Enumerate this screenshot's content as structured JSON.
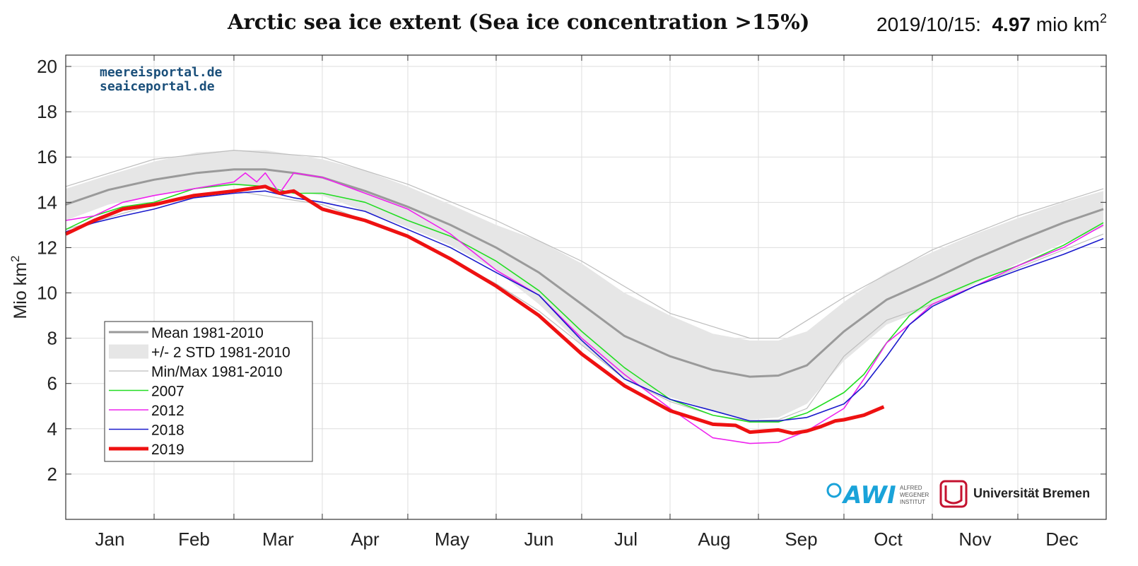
{
  "header": {
    "title": "Arctic sea ice extent (Sea ice concentration >15%)",
    "date_label": "2019/10/15:",
    "value": "4.97",
    "unit": "mio km",
    "unit_exp": "2"
  },
  "watermark": [
    "meereisportal.de",
    "seaiceportal.de"
  ],
  "logos": {
    "awi": "AWI",
    "awi_sub": [
      "ALFRED",
      "WEGENER",
      "INSTITUT"
    ],
    "bremen": "Universität Bremen"
  },
  "colors": {
    "mean": "#9a9a9a",
    "std_band": "#e6e6e6",
    "minmax": "#bdbdbd",
    "s2007": "#22dd22",
    "s2012": "#ee22ee",
    "s2018": "#1a1acc",
    "s2019": "#ee1111",
    "watermark": "#1a4f7a",
    "awi": "#1aa3d9",
    "bremen": "#c4122f"
  },
  "chart_data": {
    "type": "line",
    "ylabel": "Mio km",
    "ylabel_exp": "2",
    "ylim": [
      0,
      20.5
    ],
    "yticks": [
      2,
      4,
      6,
      8,
      10,
      12,
      14,
      16,
      18,
      20
    ],
    "xlim": [
      0,
      365
    ],
    "x_units": "day of year",
    "month_labels": [
      "Jan",
      "Feb",
      "Mar",
      "Apr",
      "May",
      "Jun",
      "Jul",
      "Aug",
      "Sep",
      "Oct",
      "Nov",
      "Dec"
    ],
    "month_starts": [
      0,
      31,
      59,
      90,
      120,
      151,
      181,
      212,
      243,
      273,
      304,
      334,
      365
    ],
    "grid": true,
    "legend_position": "lower-left",
    "legend": [
      "Mean 1981-2010",
      "+/- 2 STD 1981-2010",
      "Min/Max 1981-2010",
      "2007",
      "2012",
      "2018",
      "2019"
    ],
    "mean": {
      "x": [
        0,
        15,
        31,
        46,
        59,
        70,
        80,
        90,
        105,
        120,
        135,
        151,
        166,
        181,
        196,
        212,
        227,
        240,
        250,
        260,
        273,
        288,
        304,
        319,
        334,
        350,
        364
      ],
      "y": [
        13.9,
        14.55,
        15.0,
        15.3,
        15.45,
        15.45,
        15.3,
        15.1,
        14.5,
        13.8,
        13.0,
        12.0,
        10.9,
        9.5,
        8.1,
        7.2,
        6.6,
        6.3,
        6.35,
        6.8,
        8.3,
        9.7,
        10.6,
        11.5,
        12.3,
        13.1,
        13.7
      ]
    },
    "std_band": {
      "x": [
        0,
        15,
        31,
        46,
        59,
        70,
        80,
        90,
        105,
        120,
        135,
        151,
        166,
        181,
        196,
        212,
        227,
        240,
        250,
        260,
        273,
        288,
        304,
        319,
        334,
        350,
        364
      ],
      "upper": [
        14.6,
        15.2,
        15.8,
        16.2,
        16.3,
        16.3,
        16.1,
        15.9,
        15.4,
        14.7,
        13.9,
        13.0,
        12.3,
        11.3,
        10.0,
        9.0,
        8.2,
        7.9,
        7.9,
        8.3,
        9.6,
        10.9,
        11.8,
        12.6,
        13.3,
        14.0,
        14.5
      ],
      "lower": [
        13.2,
        13.9,
        14.3,
        14.6,
        14.75,
        14.7,
        14.5,
        14.3,
        13.6,
        12.9,
        12.1,
        11.0,
        9.5,
        7.7,
        6.2,
        5.4,
        4.8,
        4.4,
        4.5,
        5.1,
        7.0,
        8.6,
        9.4,
        10.4,
        11.3,
        12.2,
        12.9
      ]
    },
    "min": {
      "x": [
        0,
        31,
        59,
        90,
        120,
        151,
        166,
        181,
        196,
        212,
        227,
        240,
        250,
        260,
        273,
        288,
        304,
        334,
        364
      ],
      "y": [
        12.8,
        13.9,
        14.5,
        13.9,
        12.5,
        10.4,
        9.2,
        7.7,
        6.2,
        5.2,
        4.6,
        4.35,
        4.4,
        4.9,
        7.2,
        8.8,
        9.5,
        11.1,
        12.6
      ]
    },
    "max": {
      "x": [
        0,
        31,
        59,
        90,
        120,
        151,
        181,
        212,
        240,
        250,
        273,
        304,
        334,
        364
      ],
      "y": [
        14.7,
        15.9,
        16.3,
        16.0,
        14.8,
        13.2,
        11.4,
        9.1,
        8.0,
        8.0,
        9.8,
        11.9,
        13.4,
        14.6
      ]
    },
    "series": [
      {
        "name": "2007",
        "x": [
          0,
          10,
          20,
          31,
          45,
          59,
          70,
          80,
          90,
          105,
          120,
          135,
          151,
          166,
          181,
          196,
          212,
          227,
          240,
          250,
          260,
          273,
          280,
          288,
          296,
          304,
          319,
          334,
          350,
          364
        ],
        "y": [
          12.8,
          13.4,
          13.8,
          14.0,
          14.6,
          14.8,
          14.7,
          14.4,
          14.4,
          14.0,
          13.2,
          12.5,
          11.4,
          10.1,
          8.3,
          6.7,
          5.3,
          4.6,
          4.3,
          4.3,
          4.7,
          5.6,
          6.4,
          7.8,
          9.0,
          9.7,
          10.5,
          11.2,
          12.1,
          13.1
        ]
      },
      {
        "name": "2012",
        "x": [
          0,
          10,
          20,
          31,
          45,
          59,
          63,
          67,
          70,
          75,
          80,
          90,
          105,
          120,
          135,
          151,
          166,
          181,
          196,
          212,
          227,
          240,
          250,
          260,
          273,
          280,
          288,
          296,
          304,
          319,
          334,
          350,
          364
        ],
        "y": [
          13.2,
          13.4,
          14.0,
          14.3,
          14.6,
          14.9,
          15.3,
          14.9,
          15.3,
          14.4,
          15.3,
          15.1,
          14.4,
          13.7,
          12.6,
          11.0,
          9.9,
          8.0,
          6.4,
          4.9,
          3.6,
          3.35,
          3.4,
          3.9,
          4.9,
          6.2,
          7.8,
          8.6,
          9.5,
          10.3,
          11.2,
          12.0,
          13.0
        ]
      },
      {
        "name": "2018",
        "x": [
          0,
          10,
          20,
          31,
          45,
          59,
          70,
          80,
          90,
          105,
          120,
          135,
          151,
          166,
          181,
          196,
          212,
          227,
          240,
          250,
          260,
          273,
          280,
          288,
          296,
          304,
          319,
          334,
          350,
          364
        ],
        "y": [
          12.7,
          13.1,
          13.4,
          13.7,
          14.2,
          14.4,
          14.5,
          14.2,
          14.0,
          13.6,
          12.8,
          12.0,
          10.9,
          9.9,
          7.9,
          6.2,
          5.3,
          4.8,
          4.35,
          4.35,
          4.5,
          5.1,
          5.9,
          7.2,
          8.6,
          9.4,
          10.3,
          11.0,
          11.7,
          12.4
        ]
      },
      {
        "name": "2019",
        "x": [
          0,
          10,
          20,
          31,
          45,
          59,
          70,
          75,
          80,
          90,
          105,
          120,
          135,
          151,
          166,
          181,
          196,
          212,
          227,
          235,
          240,
          245,
          250,
          255,
          260,
          265,
          270,
          273,
          280,
          287
        ],
        "y": [
          12.6,
          13.2,
          13.7,
          13.9,
          14.3,
          14.5,
          14.7,
          14.4,
          14.5,
          13.7,
          13.2,
          12.5,
          11.5,
          10.3,
          9.0,
          7.3,
          5.9,
          4.8,
          4.2,
          4.15,
          3.85,
          3.9,
          3.95,
          3.8,
          3.9,
          4.1,
          4.35,
          4.4,
          4.6,
          4.97
        ]
      }
    ]
  }
}
